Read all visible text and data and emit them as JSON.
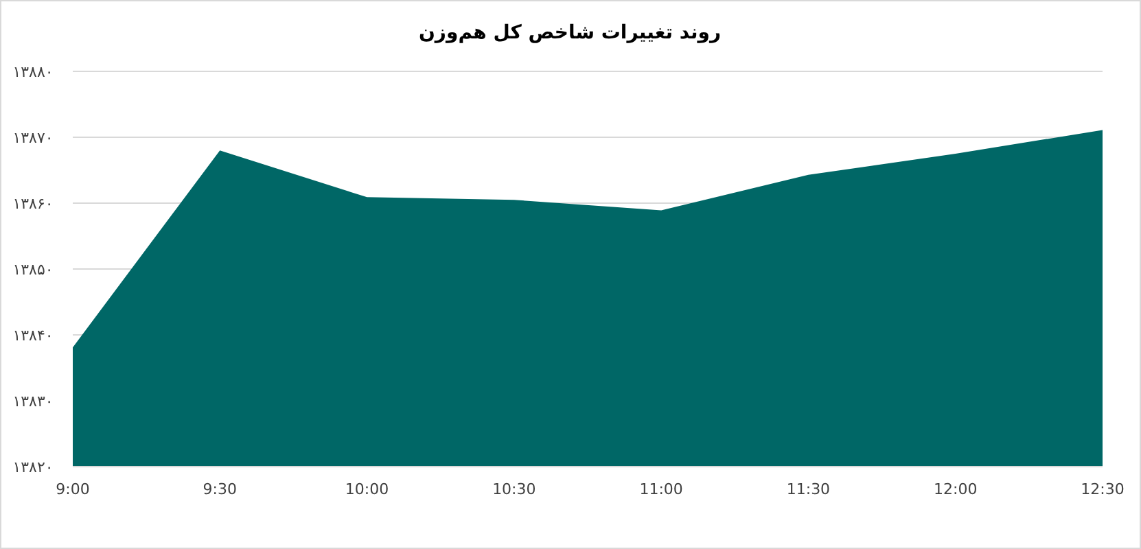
{
  "chart_data": {
    "type": "area",
    "title": "روند تغییرات شاخص کل هم‌وزن",
    "categories": [
      "9:00",
      "9:30",
      "10:00",
      "10:30",
      "11:00",
      "11:30",
      "12:00",
      "12:30"
    ],
    "values": [
      13838.1,
      13868.0,
      13860.9,
      13860.5,
      13858.9,
      13864.3,
      13867.5,
      13871.1
    ],
    "color": "#006766",
    "ylim": [
      13820,
      13880
    ],
    "yticks": [
      {
        "value": 13820,
        "label": "۱۳۸۲۰"
      },
      {
        "value": 13830,
        "label": "۱۳۸۳۰"
      },
      {
        "value": 13840,
        "label": "۱۳۸۴۰"
      },
      {
        "value": 13850,
        "label": "۱۳۸۵۰"
      },
      {
        "value": 13860,
        "label": "۱۳۸۶۰"
      },
      {
        "value": 13870,
        "label": "۱۳۸۷۰"
      },
      {
        "value": 13880,
        "label": "۱۳۸۸۰"
      }
    ],
    "grid": "y"
  }
}
